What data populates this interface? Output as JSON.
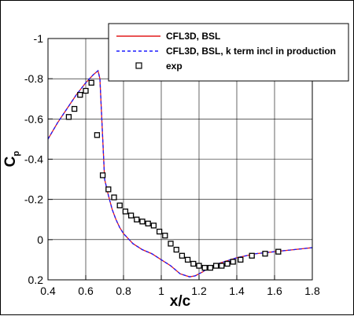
{
  "chart_data": {
    "type": "line",
    "xlabel": "x/c",
    "ylabel": "C",
    "ylabel_sub": "p",
    "xlim": [
      0.4,
      1.8
    ],
    "ylim": [
      0.2,
      -1.0
    ],
    "y_inverted": true,
    "grid": true,
    "legend_position": "top-right",
    "x_ticks": [
      0.4,
      0.6,
      0.8,
      1.0,
      1.2,
      1.4,
      1.6,
      1.8
    ],
    "x_tick_labels": [
      "0.4",
      "0.6",
      "0.8",
      "1",
      "1.2",
      "1.4",
      "1.6",
      "1.8"
    ],
    "y_ticks": [
      -1.0,
      -0.8,
      -0.6,
      -0.4,
      -0.2,
      0.0,
      0.2
    ],
    "y_tick_labels": [
      "-1",
      "-0.8",
      "-0.6",
      "-0.4",
      "-0.2",
      "0",
      "0.2"
    ],
    "series": [
      {
        "name": "CFL3D, BSL",
        "style": "solid",
        "color": "#e41a1c",
        "x": [
          0.4,
          0.45,
          0.5,
          0.55,
          0.6,
          0.64,
          0.665,
          0.675,
          0.685,
          0.7,
          0.72,
          0.74,
          0.76,
          0.78,
          0.8,
          0.85,
          0.9,
          0.95,
          1.0,
          1.05,
          1.1,
          1.15,
          1.18,
          1.22,
          1.25,
          1.3,
          1.4,
          1.5,
          1.6,
          1.7,
          1.8
        ],
        "y": [
          -0.5,
          -0.58,
          -0.65,
          -0.72,
          -0.78,
          -0.82,
          -0.84,
          -0.8,
          -0.6,
          -0.3,
          -0.22,
          -0.15,
          -0.1,
          -0.06,
          -0.03,
          0.02,
          0.05,
          0.07,
          0.1,
          0.13,
          0.17,
          0.185,
          0.18,
          0.16,
          0.14,
          0.12,
          0.09,
          0.07,
          0.06,
          0.05,
          0.04
        ]
      },
      {
        "name": "CFL3D, BSL, k term incl in production",
        "style": "dashed",
        "color": "#1a1aff",
        "x": [
          0.4,
          0.45,
          0.5,
          0.55,
          0.6,
          0.64,
          0.665,
          0.675,
          0.685,
          0.7,
          0.72,
          0.74,
          0.76,
          0.78,
          0.8,
          0.85,
          0.9,
          0.95,
          1.0,
          1.05,
          1.1,
          1.15,
          1.18,
          1.22,
          1.25,
          1.3,
          1.4,
          1.5,
          1.6,
          1.7,
          1.8
        ],
        "y": [
          -0.5,
          -0.58,
          -0.65,
          -0.72,
          -0.78,
          -0.82,
          -0.84,
          -0.8,
          -0.6,
          -0.3,
          -0.22,
          -0.15,
          -0.1,
          -0.06,
          -0.03,
          0.02,
          0.05,
          0.07,
          0.1,
          0.13,
          0.17,
          0.185,
          0.18,
          0.16,
          0.14,
          0.12,
          0.09,
          0.07,
          0.06,
          0.05,
          0.04
        ]
      },
      {
        "name": "exp",
        "style": "markers",
        "marker": "square",
        "color": "#000000",
        "x": [
          0.51,
          0.54,
          0.57,
          0.6,
          0.63,
          0.66,
          0.69,
          0.72,
          0.75,
          0.78,
          0.81,
          0.84,
          0.87,
          0.9,
          0.93,
          0.96,
          0.99,
          1.02,
          1.05,
          1.08,
          1.11,
          1.14,
          1.17,
          1.2,
          1.23,
          1.26,
          1.29,
          1.32,
          1.35,
          1.38,
          1.42,
          1.48,
          1.55,
          1.62
        ],
        "y": [
          -0.61,
          -0.65,
          -0.72,
          -0.74,
          -0.78,
          -0.52,
          -0.32,
          -0.25,
          -0.21,
          -0.17,
          -0.14,
          -0.12,
          -0.1,
          -0.09,
          -0.08,
          -0.07,
          -0.04,
          -0.02,
          0.02,
          0.05,
          0.08,
          0.1,
          0.12,
          0.13,
          0.14,
          0.14,
          0.13,
          0.13,
          0.12,
          0.11,
          0.1,
          0.08,
          0.07,
          0.06
        ]
      }
    ]
  }
}
